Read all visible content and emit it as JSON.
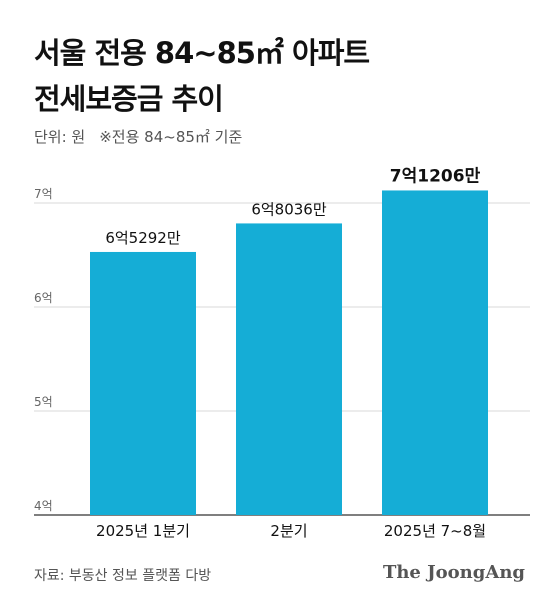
{
  "chart_data": {
    "type": "bar",
    "title_line1": "서울 전용 84~85㎡ 아파트",
    "title_line2": "전세보증금 추이",
    "unit_note": "단위: 원",
    "scope_note": "※전용 84~85㎡ 기준",
    "categories": [
      "2025년 1분기",
      "2분기",
      "2025년 7~8월"
    ],
    "values": [
      652920000,
      680360000,
      712060000
    ],
    "data_labels": [
      "6억5292만",
      "6억8036만",
      "7억1206만"
    ],
    "ylim": [
      400000000,
      700000000
    ],
    "y_ticks": [
      {
        "value": 700000000,
        "label": "7억"
      },
      {
        "value": 600000000,
        "label": "6억"
      },
      {
        "value": 500000000,
        "label": "5억"
      },
      {
        "value": 400000000,
        "label": "4억"
      }
    ],
    "bar_color": "#15ADD6",
    "grid": true,
    "highlight_index": 2
  },
  "footer": {
    "source": "자료: 부동산 정보 플랫폼 다방",
    "brand": "The JoongAng"
  }
}
